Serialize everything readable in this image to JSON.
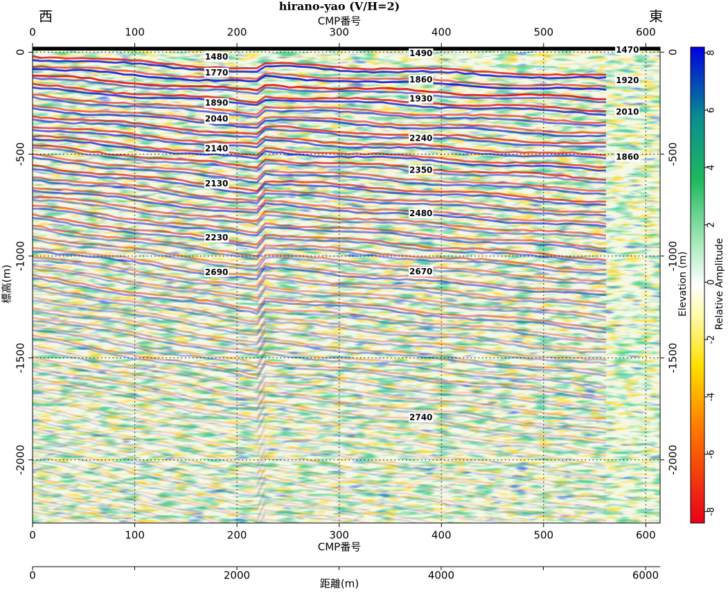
{
  "chart_data": {
    "type": "seismic",
    "title": "hirano-yao (V/H=2)",
    "west_label": "西",
    "east_label": "東",
    "x_label_top": "CMP番号",
    "x_label_bottom": "CMP番号",
    "y_label_left": "標高(m)",
    "y_label_right": "Elevation (m)",
    "distance_label": "距離(m)",
    "colorbar_label": "Relative Amplitude",
    "xlim": [
      0,
      614
    ],
    "xticks": [
      0,
      100,
      200,
      300,
      400,
      500,
      600
    ],
    "ylim": [
      -2310,
      25
    ],
    "yticks": [
      0,
      -500,
      -1000,
      -1500,
      -2000
    ],
    "distance_lim": [
      0,
      6143
    ],
    "distance_ticks": [
      0,
      2000,
      4000,
      6000
    ],
    "distance_minor_ticks": [
      1000,
      3000,
      5000
    ],
    "clim": [
      -8.4,
      8.2
    ],
    "cticks": [
      -8,
      -6,
      -4,
      -2,
      0,
      2,
      4,
      6,
      8
    ],
    "grid": true,
    "annotations": [
      {
        "text": "1480",
        "x": 180,
        "y": -24
      },
      {
        "text": "1770",
        "x": 180,
        "y": -102
      },
      {
        "text": "1890",
        "x": 180,
        "y": -251
      },
      {
        "text": "2040",
        "x": 180,
        "y": -329
      },
      {
        "text": "2140",
        "x": 180,
        "y": -475
      },
      {
        "text": "2130",
        "x": 180,
        "y": -647
      },
      {
        "text": "2230",
        "x": 180,
        "y": -912
      },
      {
        "text": "2690",
        "x": 180,
        "y": -1081
      },
      {
        "text": "1490",
        "x": 380,
        "y": -7
      },
      {
        "text": "1860",
        "x": 380,
        "y": -136
      },
      {
        "text": "1930",
        "x": 380,
        "y": -230
      },
      {
        "text": "2240",
        "x": 380,
        "y": -424
      },
      {
        "text": "2350",
        "x": 380,
        "y": -580
      },
      {
        "text": "2480",
        "x": 380,
        "y": -793
      },
      {
        "text": "2670",
        "x": 380,
        "y": -1078
      },
      {
        "text": "2740",
        "x": 380,
        "y": -1793
      },
      {
        "text": "1470",
        "x": 582,
        "y": 10
      },
      {
        "text": "1920",
        "x": 582,
        "y": -140
      },
      {
        "text": "2010",
        "x": 582,
        "y": -295
      },
      {
        "text": "1860",
        "x": 582,
        "y": -515
      }
    ]
  }
}
